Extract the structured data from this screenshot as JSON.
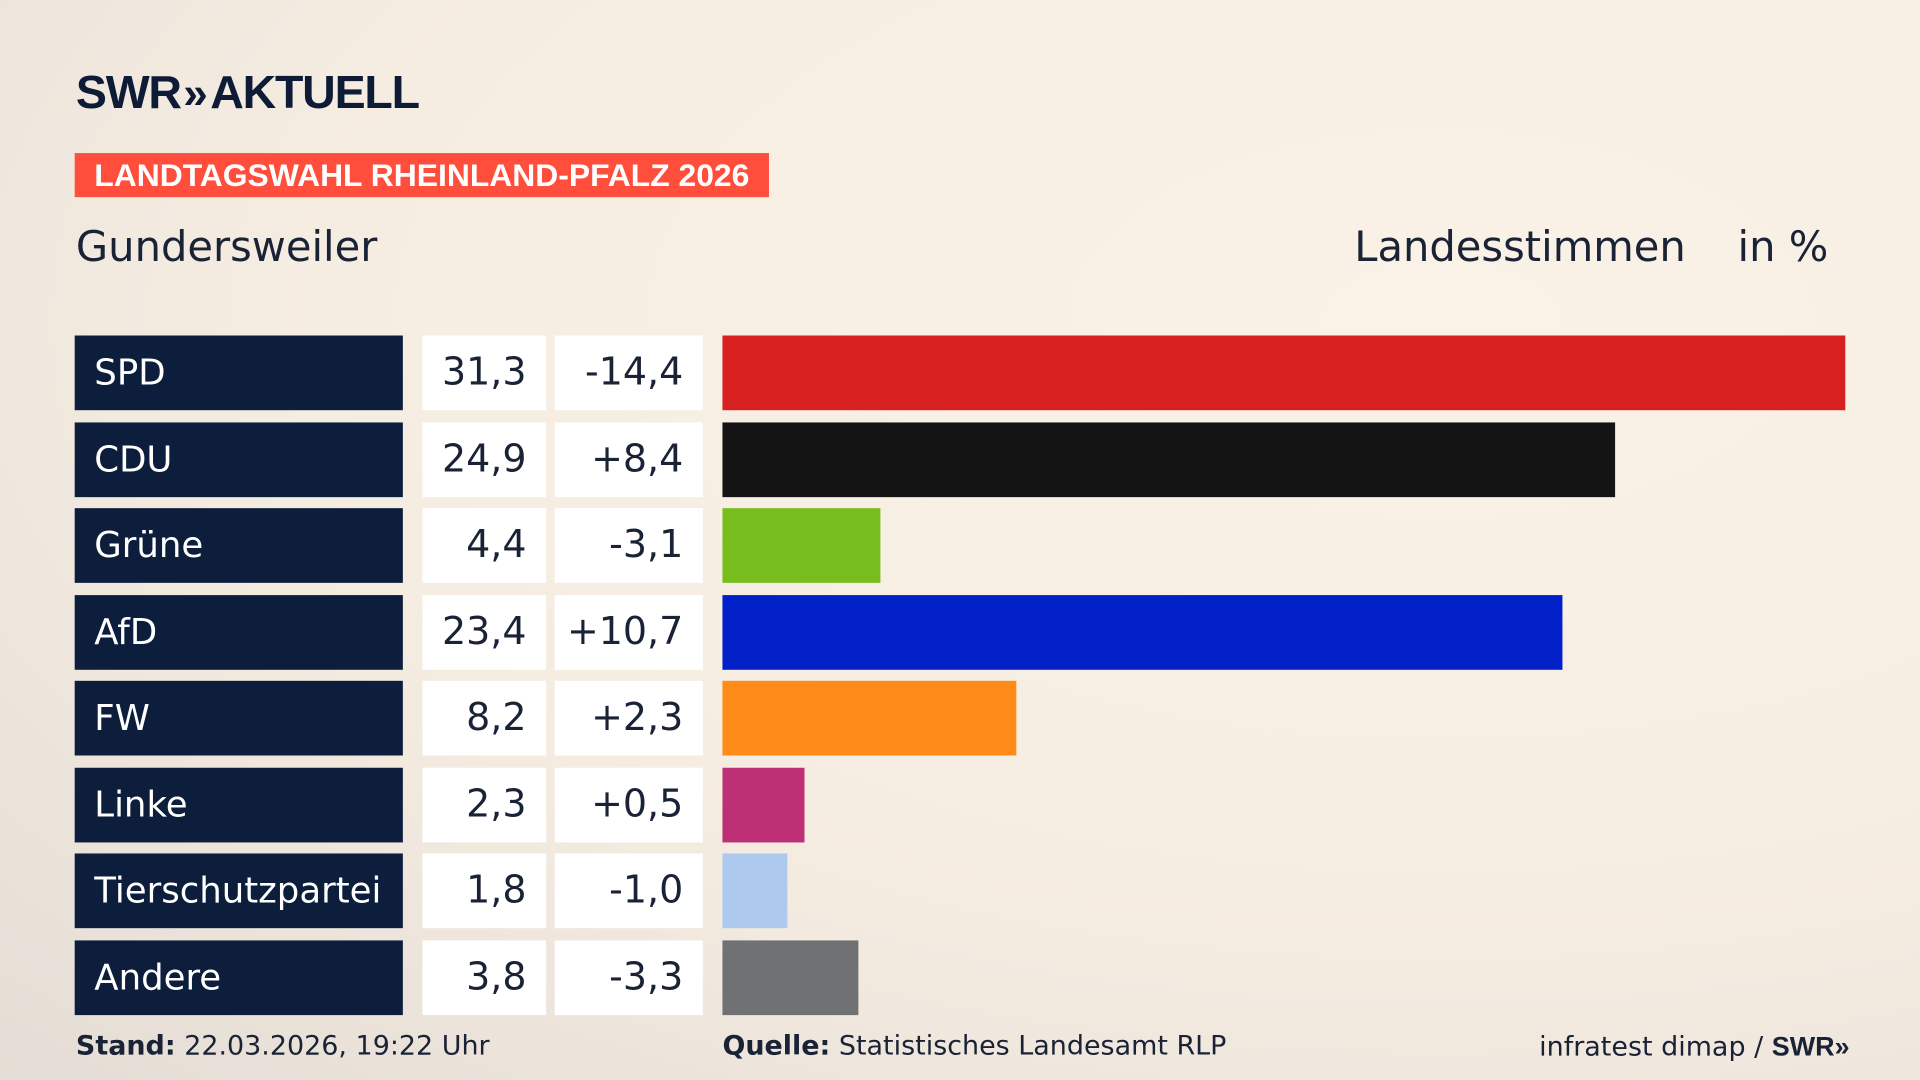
{
  "logo": {
    "text": "SWR",
    "chevrons": "»",
    "suffix": "AKTUELL"
  },
  "banner": "LANDTAGSWAHL RHEINLAND-PFALZ 2026",
  "place": "Gundersweiler",
  "header": {
    "measure": "Landesstimmen",
    "unit": "in %"
  },
  "chart_data": {
    "type": "bar",
    "orientation": "horizontal",
    "categories": [
      "SPD",
      "CDU",
      "Grüne",
      "AfD",
      "FW",
      "Linke",
      "Tierschutzpartei",
      "Andere"
    ],
    "values": [
      31.3,
      24.9,
      4.4,
      23.4,
      8.2,
      2.3,
      1.8,
      3.8
    ],
    "value_labels": [
      "31,3",
      "24,9",
      "4,4",
      "23,4",
      "8,2",
      "2,3",
      "1,8",
      "3,8"
    ],
    "changes": [
      "-14,4",
      "+8,4",
      "-3,1",
      "+10,7",
      "+2,3",
      "+0,5",
      "-1,0",
      "-3,3"
    ],
    "colors": [
      "#d82020",
      "#141414",
      "#78bd1e",
      "#0120c8",
      "#ff8c18",
      "#be3075",
      "#aec9ee",
      "#707173"
    ],
    "xlim": [
      0,
      31.3
    ],
    "grid": false
  },
  "footer": {
    "stand_label": "Stand:",
    "stand_value": "22.03.2026, 19:22 Uhr",
    "source_label": "Quelle:",
    "source_value": "Statistisches Landesamt RLP",
    "credit": "infratest dimap /",
    "credit_logo": "SWR»"
  }
}
